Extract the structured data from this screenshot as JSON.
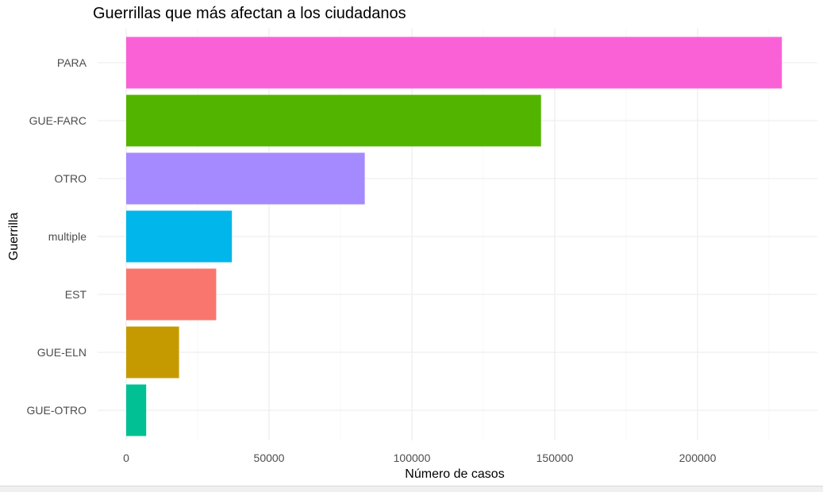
{
  "chart_data": {
    "type": "bar",
    "orientation": "horizontal",
    "title": "Guerrillas que más afectan a los ciudadanos",
    "xlabel": "Número de casos",
    "ylabel": "Guerrilla",
    "categories": [
      "PARA",
      "GUE-FARC",
      "OTRO",
      "multiple",
      "EST",
      "GUE-ELN",
      "GUE-OTRO"
    ],
    "values": [
      229500,
      145200,
      83500,
      37000,
      31500,
      18500,
      7000
    ],
    "colors": [
      "#FB61D7",
      "#53B400",
      "#A58AFF",
      "#00B6EB",
      "#F8766D",
      "#C49A00",
      "#00C094"
    ],
    "xlim": [
      0,
      240000
    ],
    "xticks": [
      0,
      50000,
      100000,
      150000,
      200000
    ],
    "xtick_labels": [
      "0",
      "50000",
      "100000",
      "150000",
      "200000"
    ],
    "grid": true,
    "legend": "none"
  }
}
